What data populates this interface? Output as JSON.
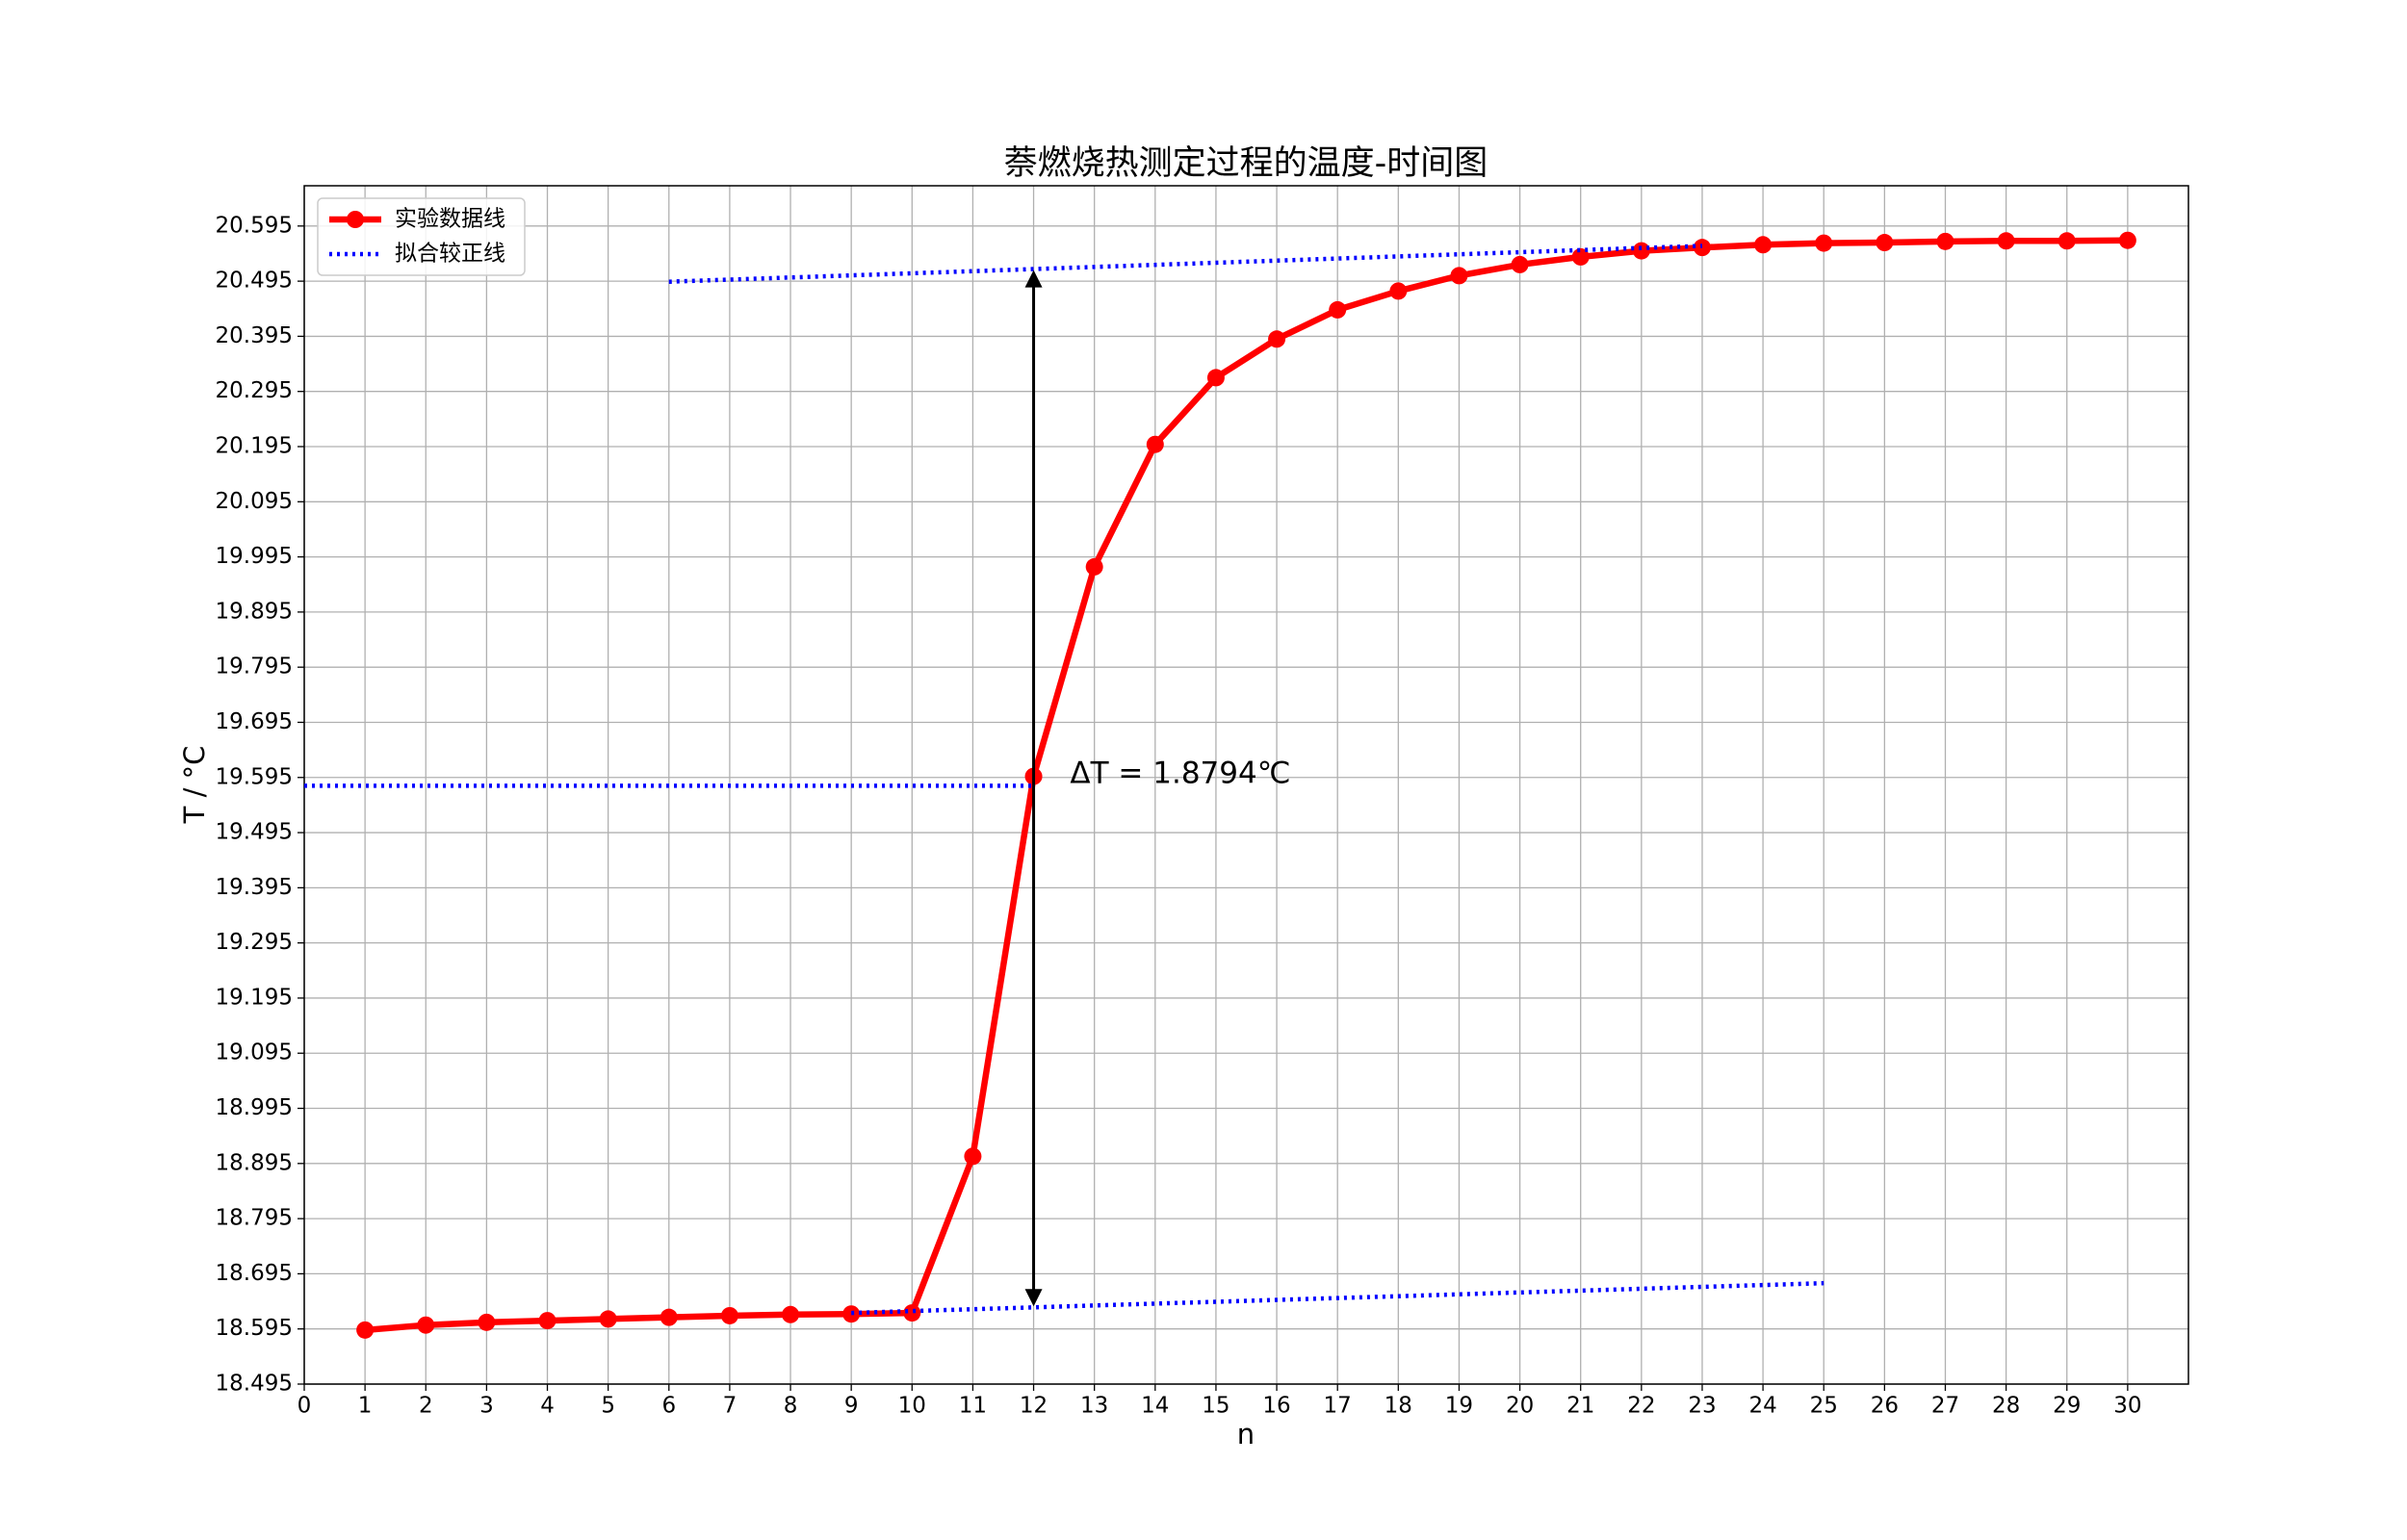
{
  "chart_data": {
    "type": "line",
    "title": "萘燃烧热测定过程的温度-时间图",
    "x_label": "n",
    "y_label": "T / °C",
    "xlim": [
      0,
      31
    ],
    "ylim": [
      18.495,
      20.668
    ],
    "xticks": [
      0,
      1,
      2,
      3,
      4,
      5,
      6,
      7,
      8,
      9,
      10,
      11,
      12,
      13,
      14,
      15,
      16,
      17,
      18,
      19,
      20,
      21,
      22,
      23,
      24,
      25,
      26,
      27,
      28,
      29,
      30
    ],
    "yticks": [
      18.495,
      18.595,
      18.695,
      18.795,
      18.895,
      18.995,
      19.095,
      19.195,
      19.295,
      19.395,
      19.495,
      19.595,
      19.695,
      19.795,
      19.895,
      19.995,
      20.095,
      20.195,
      20.295,
      20.395,
      20.495,
      20.595
    ],
    "grid": true,
    "legend": "upper left",
    "series": [
      {
        "name": "实验数据线",
        "color": "#ff0000",
        "style": "solid-marker",
        "x": [
          1,
          2,
          3,
          4,
          5,
          6,
          7,
          8,
          9,
          10,
          11,
          12,
          13,
          14,
          15,
          16,
          17,
          18,
          19,
          20,
          21,
          22,
          23,
          24,
          25,
          26,
          27,
          28,
          29,
          30
        ],
        "values": [
          18.593,
          18.602,
          18.607,
          18.61,
          18.613,
          18.616,
          18.619,
          18.621,
          18.622,
          18.624,
          18.908,
          19.597,
          19.977,
          20.199,
          20.32,
          20.39,
          20.443,
          20.477,
          20.505,
          20.525,
          20.539,
          20.55,
          20.556,
          20.561,
          20.564,
          20.565,
          20.567,
          20.568,
          20.568,
          20.569
        ]
      },
      {
        "name": "拟合较正线",
        "color": "#0000ff",
        "style": "dotted",
        "x": [
          6,
          23,
          null,
          9,
          25,
          null,
          0,
          12
        ],
        "values": [
          20.494,
          20.559,
          null,
          18.624,
          18.678,
          null,
          19.58,
          19.58
        ]
      }
    ],
    "arrow": {
      "x": 12,
      "from": 18.636,
      "to": 20.515
    },
    "annotation": {
      "text": "ΔT = 1.8794℃",
      "x": 12.6,
      "y": 19.6
    }
  }
}
